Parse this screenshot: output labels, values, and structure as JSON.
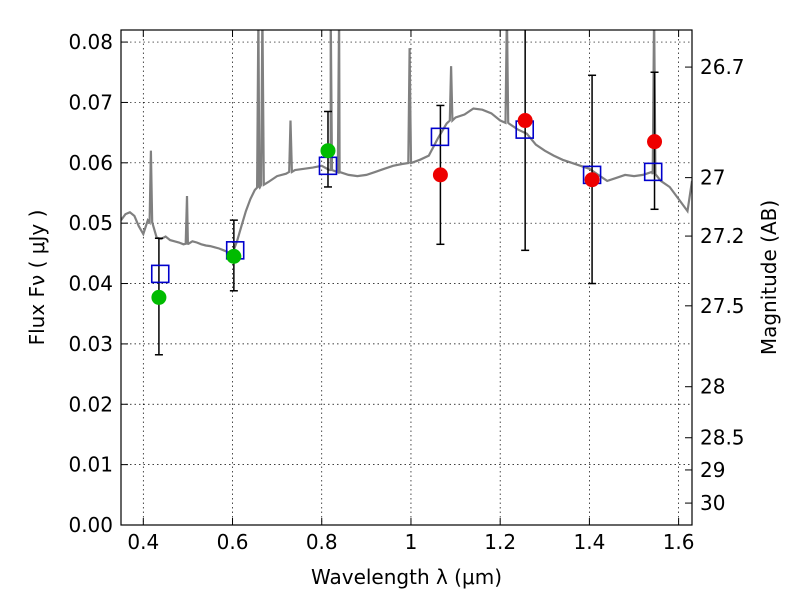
{
  "chart_data": {
    "type": "scatter",
    "title": "",
    "xlabel": "Wavelength  λ (μm)",
    "ylabel": "Flux  Fν  ( μJy )",
    "y2label": "Magnitude (AB)",
    "xlim": [
      0.35,
      1.63
    ],
    "ylim": [
      0.0,
      0.082
    ],
    "grid": true,
    "x_ticks": [
      0.4,
      0.6,
      0.8,
      1.0,
      1.2,
      1.4,
      1.6
    ],
    "x_tick_labels": [
      "0.4",
      "0.6",
      "0.8",
      "1",
      "1.2",
      "1.4",
      "1.6"
    ],
    "y_ticks": [
      0.0,
      0.01,
      0.02,
      0.03,
      0.04,
      0.05,
      0.06,
      0.07,
      0.08
    ],
    "y_tick_labels": [
      "0.00",
      "0.01",
      "0.02",
      "0.03",
      "0.04",
      "0.05",
      "0.06",
      "0.07",
      "0.08"
    ],
    "y2_ticks": [
      26.7,
      27,
      27.2,
      27.5,
      28,
      28.5,
      29,
      30
    ],
    "y2_tick_labels": [
      "26.7",
      "27",
      "27.2",
      "27.5",
      "28",
      "28.5",
      "29",
      "30"
    ],
    "colors": {
      "spectrum": "#808080",
      "model": "#0000cc",
      "green_points": "#00bb00",
      "red_points": "#ee0000",
      "errorbar": "#000000"
    },
    "spectrum": {
      "x": [
        0.35,
        0.36,
        0.37,
        0.38,
        0.39,
        0.4,
        0.41,
        0.42,
        0.43,
        0.44,
        0.45,
        0.46,
        0.47,
        0.48,
        0.49,
        0.5,
        0.51,
        0.52,
        0.53,
        0.54,
        0.55,
        0.56,
        0.57,
        0.58,
        0.59,
        0.6,
        0.61,
        0.62,
        0.63,
        0.64,
        0.65,
        0.66,
        0.67,
        0.68,
        0.7,
        0.72,
        0.74,
        0.76,
        0.78,
        0.8,
        0.82,
        0.84,
        0.86,
        0.88,
        0.9,
        0.92,
        0.94,
        0.96,
        0.98,
        1.0,
        1.02,
        1.04,
        1.06,
        1.08,
        1.1,
        1.12,
        1.14,
        1.16,
        1.18,
        1.2,
        1.22,
        1.24,
        1.26,
        1.28,
        1.3,
        1.32,
        1.34,
        1.36,
        1.38,
        1.4,
        1.42,
        1.44,
        1.46,
        1.48,
        1.5,
        1.52,
        1.54,
        1.56,
        1.58,
        1.6,
        1.62,
        1.63
      ],
      "y": [
        0.0505,
        0.0515,
        0.0518,
        0.0512,
        0.0495,
        0.0482,
        0.0505,
        0.05,
        0.0476,
        0.0474,
        0.0478,
        0.0472,
        0.047,
        0.0468,
        0.0465,
        0.0466,
        0.047,
        0.0468,
        0.0465,
        0.0463,
        0.0462,
        0.046,
        0.0458,
        0.0455,
        0.0452,
        0.045,
        0.047,
        0.0495,
        0.052,
        0.054,
        0.0555,
        0.056,
        0.0565,
        0.0568,
        0.0578,
        0.0582,
        0.0588,
        0.059,
        0.0592,
        0.0595,
        0.0588,
        0.0584,
        0.058,
        0.0578,
        0.058,
        0.0585,
        0.059,
        0.0595,
        0.0598,
        0.06,
        0.0605,
        0.0612,
        0.064,
        0.0665,
        0.0675,
        0.068,
        0.069,
        0.0688,
        0.0682,
        0.067,
        0.0665,
        0.0655,
        0.0648,
        0.063,
        0.062,
        0.0612,
        0.0605,
        0.06,
        0.0595,
        0.059,
        0.058,
        0.057,
        0.0575,
        0.058,
        0.0578,
        0.058,
        0.0585,
        0.057,
        0.056,
        0.054,
        0.052,
        0.057
      ]
    },
    "spectrum_spikes": [
      {
        "x": 0.417,
        "y": 0.062
      },
      {
        "x": 0.498,
        "y": 0.0545
      },
      {
        "x": 0.658,
        "y": 0.085
      },
      {
        "x": 0.667,
        "y": 0.085
      },
      {
        "x": 0.73,
        "y": 0.067
      },
      {
        "x": 0.82,
        "y": 0.085
      },
      {
        "x": 0.839,
        "y": 0.085
      },
      {
        "x": 0.997,
        "y": 0.079
      },
      {
        "x": 1.09,
        "y": 0.076
      },
      {
        "x": 1.215,
        "y": 0.085
      },
      {
        "x": 1.545,
        "y": 0.085
      }
    ],
    "series": [
      {
        "marker": "square",
        "x": [
          0.438,
          0.606,
          0.814,
          1.065,
          1.255,
          1.406,
          1.543
        ],
        "y": [
          0.0416,
          0.0455,
          0.0595,
          0.0643,
          0.0655,
          0.058,
          0.0585
        ]
      },
      {
        "marker": "circle",
        "x": [
          0.435,
          0.603,
          0.814
        ],
        "y": [
          0.0377,
          0.0445,
          0.062
        ],
        "yerr_low": [
          0.0282,
          0.0388,
          0.056
        ],
        "yerr_high": [
          0.0475,
          0.0505,
          0.0685
        ]
      },
      {
        "marker": "circle",
        "x": [
          1.066,
          1.256,
          1.406,
          1.546
        ],
        "y": [
          0.058,
          0.067,
          0.0572,
          0.0635
        ],
        "yerr_low": [
          0.0465,
          0.0455,
          0.04,
          0.0523
        ],
        "yerr_high": [
          0.0695,
          0.084,
          0.0745,
          0.075
        ]
      }
    ]
  }
}
